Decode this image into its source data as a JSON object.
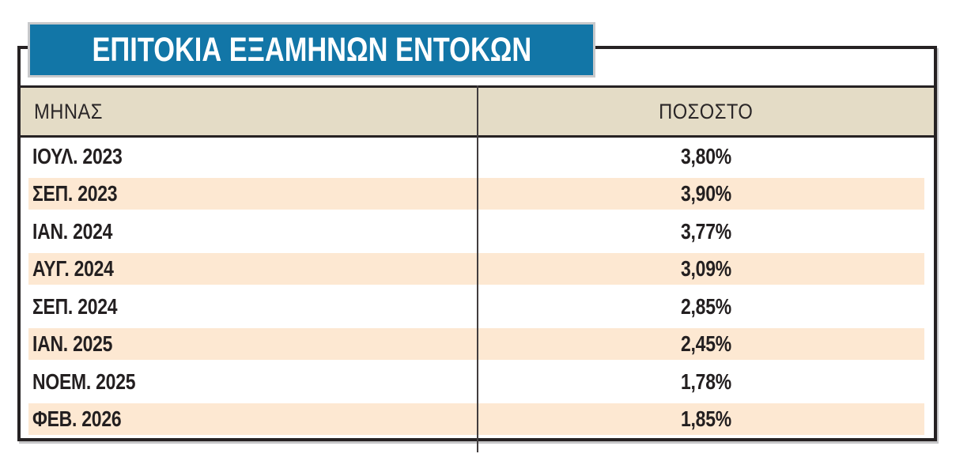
{
  "title": {
    "label": "ΕΠΙΤΟΚΙΑ ΕΞΑΜΗΝΩΝ ΕΝΤΟΚΩΝ"
  },
  "table": {
    "header": {
      "month": "ΜΗΝΑΣ",
      "rate": "ΠΟΣΟΣΤΟ"
    },
    "rows": [
      {
        "month": "ΙΟΥΛ. 2023",
        "rate": "3,80%"
      },
      {
        "month": "ΣΕΠ. 2023",
        "rate": "3,90%"
      },
      {
        "month": "ΙΑΝ. 2024",
        "rate": "3,77%"
      },
      {
        "month": "ΑΥΓ. 2024",
        "rate": "3,09%"
      },
      {
        "month": "ΣΕΠ. 2024",
        "rate": "2,85%"
      },
      {
        "month": "ΙΑΝ. 2025",
        "rate": "2,45%"
      },
      {
        "month": "ΝΟΕΜ. 2025",
        "rate": "1,78%"
      },
      {
        "month": "ΦΕΒ. 2026",
        "rate": "1,85%"
      }
    ]
  },
  "chart_data": {
    "type": "table",
    "title": "ΕΠΙΤΟΚΙΑ ΕΞΑΜΗΝΩΝ ΕΝΤΟΚΩΝ",
    "columns": [
      "ΜΗΝΑΣ",
      "ΠΟΣΟΣΤΟ"
    ],
    "categories": [
      "ΙΟΥΛ. 2023",
      "ΣΕΠ. 2023",
      "ΙΑΝ. 2024",
      "ΑΥΓ. 2024",
      "ΣΕΠ. 2024",
      "ΙΑΝ. 2025",
      "ΝΟΕΜ. 2025",
      "ΦΕΒ. 2026"
    ],
    "values": [
      3.8,
      3.9,
      3.77,
      3.09,
      2.85,
      2.45,
      1.78,
      1.85
    ],
    "values_display": [
      "3,80%",
      "3,90%",
      "3,77%",
      "3,09%",
      "2,85%",
      "2,45%",
      "1,78%",
      "1,85%"
    ],
    "unit": "%",
    "legend_position": "none",
    "grid": "off"
  },
  "colors": {
    "title_bg": "#1276a7",
    "title_border": "#c8c9cb",
    "header_bg": "#e4dcc6",
    "stripe_bg": "#fde8d2",
    "frame_border": "#262223",
    "text": "#231f20"
  }
}
